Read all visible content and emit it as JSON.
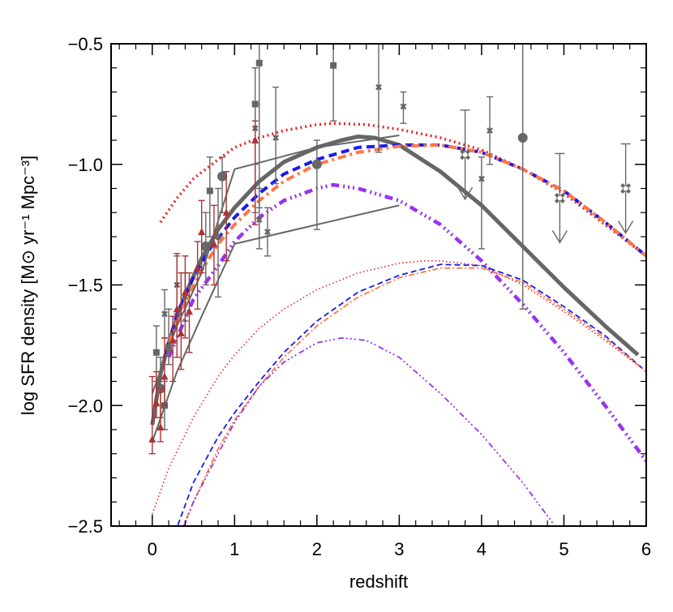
{
  "chart_data": {
    "type": "line",
    "title": "",
    "xlabel": "redshift",
    "ylabel": "log SFR density [M⊙ yr⁻¹ Mpc⁻³]",
    "xlim": [
      -0.5,
      6.0
    ],
    "ylim": [
      -2.5,
      -0.5
    ],
    "xticks": [
      0,
      1,
      2,
      3,
      4,
      5,
      6
    ],
    "yticks": [
      -2.5,
      -2.0,
      -1.5,
      -1.0,
      -0.5
    ],
    "ytick_labels": [
      "−2.5",
      "−2.0",
      "−1.5",
      "−1.0",
      "−0.5"
    ],
    "grid": false,
    "series": [
      {
        "style": "thick-solid",
        "color": "#666666",
        "width": 5,
        "dash": "",
        "x": [
          0.0,
          0.1,
          0.2,
          0.4,
          0.6,
          0.8,
          1.0,
          1.3,
          1.6,
          2.0,
          2.3,
          2.5,
          2.7,
          3.0,
          3.5,
          4.0,
          4.5,
          5.0,
          5.5,
          5.9
        ],
        "y": [
          -2.08,
          -1.87,
          -1.74,
          -1.54,
          -1.39,
          -1.27,
          -1.18,
          -1.07,
          -0.99,
          -0.93,
          -0.9,
          -0.885,
          -0.89,
          -0.92,
          -1.03,
          -1.17,
          -1.34,
          -1.51,
          -1.67,
          -1.79
        ]
      },
      {
        "style": "thick-dotted",
        "color": "#ee2222",
        "width": 3.5,
        "dash": "2 4",
        "x": [
          0.1,
          0.3,
          0.5,
          0.8,
          1.0,
          1.3,
          1.6,
          2.0,
          2.2,
          2.6,
          3.0,
          3.5,
          4.0,
          4.5,
          5.0,
          5.5,
          6.0
        ],
        "y": [
          -1.24,
          -1.14,
          -1.06,
          -0.98,
          -0.93,
          -0.89,
          -0.86,
          -0.835,
          -0.83,
          -0.835,
          -0.855,
          -0.89,
          -0.94,
          -1.02,
          -1.12,
          -1.25,
          -1.38
        ]
      },
      {
        "style": "thick-dashed",
        "color": "#1a1aee",
        "width": 4,
        "dash": "10 6",
        "x": [
          0.15,
          0.3,
          0.5,
          0.7,
          1.0,
          1.3,
          1.6,
          2.0,
          2.5,
          3.0,
          3.5,
          4.0,
          4.5,
          5.0,
          5.5,
          6.0
        ],
        "y": [
          -1.8,
          -1.62,
          -1.47,
          -1.35,
          -1.22,
          -1.12,
          -1.04,
          -0.98,
          -0.93,
          -0.92,
          -0.92,
          -0.95,
          -1.02,
          -1.11,
          -1.24,
          -1.38
        ]
      },
      {
        "style": "thick-dashdot",
        "color": "#ff7744",
        "width": 4,
        "dash": "10 5 3 5",
        "x": [
          0.2,
          0.4,
          0.6,
          0.8,
          1.0,
          1.3,
          1.6,
          2.0,
          2.5,
          3.0,
          3.5,
          4.0,
          4.5,
          5.0,
          5.5,
          6.0
        ],
        "y": [
          -1.74,
          -1.57,
          -1.44,
          -1.33,
          -1.25,
          -1.15,
          -1.07,
          -1.0,
          -0.95,
          -0.925,
          -0.92,
          -0.95,
          -1.02,
          -1.11,
          -1.24,
          -1.38
        ]
      },
      {
        "style": "thick-dashdotdot",
        "color": "#9933ee",
        "width": 4.5,
        "dash": "10 5 2 4 2 4 2 5",
        "x": [
          0.2,
          0.5,
          0.8,
          1.0,
          1.3,
          1.6,
          2.0,
          2.2,
          2.5,
          3.0,
          3.5,
          4.0,
          4.5,
          5.0,
          5.5,
          6.0
        ],
        "y": [
          -1.8,
          -1.56,
          -1.42,
          -1.32,
          -1.22,
          -1.15,
          -1.1,
          -1.085,
          -1.1,
          -1.15,
          -1.25,
          -1.4,
          -1.58,
          -1.78,
          -2.0,
          -2.23
        ]
      },
      {
        "style": "thin-dotted",
        "color": "#ee2222",
        "width": 1.6,
        "dash": "1.5 3",
        "x": [
          0.0,
          0.2,
          0.5,
          0.8,
          1.0,
          1.3,
          1.6,
          2.0,
          2.5,
          3.0,
          3.3,
          3.5,
          4.0,
          4.5,
          5.0,
          5.5,
          6.0
        ],
        "y": [
          -2.45,
          -2.26,
          -2.05,
          -1.88,
          -1.79,
          -1.68,
          -1.6,
          -1.52,
          -1.45,
          -1.41,
          -1.4,
          -1.4,
          -1.42,
          -1.5,
          -1.61,
          -1.73,
          -1.86
        ]
      },
      {
        "style": "thin-dashed",
        "color": "#1a1aee",
        "width": 1.8,
        "dash": "7 4",
        "x": [
          0.2,
          0.5,
          0.8,
          1.0,
          1.3,
          1.6,
          2.0,
          2.5,
          3.0,
          3.5,
          4.0,
          4.5,
          5.0,
          5.5,
          6.0
        ],
        "y": [
          -2.6,
          -2.32,
          -2.13,
          -2.03,
          -1.9,
          -1.78,
          -1.65,
          -1.53,
          -1.46,
          -1.415,
          -1.42,
          -1.48,
          -1.59,
          -1.71,
          -1.86
        ]
      },
      {
        "style": "thin-dashdot",
        "color": "#ff7744",
        "width": 1.8,
        "dash": "7 3 2 3",
        "x": [
          0.3,
          0.5,
          0.8,
          1.0,
          1.3,
          1.6,
          2.0,
          2.5,
          3.0,
          3.5,
          4.0,
          4.5,
          5.0,
          5.5,
          6.0
        ],
        "y": [
          -2.56,
          -2.4,
          -2.18,
          -2.06,
          -1.92,
          -1.8,
          -1.67,
          -1.55,
          -1.47,
          -1.43,
          -1.43,
          -1.49,
          -1.6,
          -1.72,
          -1.86
        ]
      },
      {
        "style": "thin-dashdotdot",
        "color": "#9933ee",
        "width": 1.8,
        "dash": "7 3 2 3 2 3 2 4",
        "x": [
          0.3,
          0.5,
          0.8,
          1.0,
          1.3,
          1.6,
          2.0,
          2.3,
          2.6,
          3.0,
          3.5,
          4.0,
          4.5,
          5.0
        ],
        "y": [
          -2.58,
          -2.4,
          -2.2,
          -2.07,
          -1.92,
          -1.82,
          -1.74,
          -1.72,
          -1.73,
          -1.8,
          -1.95,
          -2.12,
          -2.32,
          -2.55
        ]
      },
      {
        "style": "envelope",
        "color": "#666666",
        "width": 2,
        "dash": "",
        "x": [
          0.0,
          0.3,
          0.6,
          1.0,
          2.0,
          3.0
        ],
        "y": [
          -1.95,
          -1.67,
          -1.45,
          -1.02,
          -0.93,
          -0.88
        ]
      },
      {
        "style": "envelope",
        "color": "#666666",
        "width": 2,
        "dash": "",
        "x": [
          0.0,
          0.3,
          0.6,
          1.0,
          3.0
        ],
        "y": [
          -2.15,
          -1.86,
          -1.63,
          -1.33,
          -1.17
        ]
      }
    ],
    "points": [
      {
        "marker": "square",
        "x": 0.05,
        "y": -1.78,
        "ylo": -1.9,
        "yhi": -1.67,
        "color": "#666666"
      },
      {
        "marker": "square",
        "x": 0.15,
        "y": -2.0,
        "ylo": -2.1,
        "yhi": -1.9,
        "color": "#666666"
      },
      {
        "marker": "square",
        "x": 0.2,
        "y": -1.76,
        "ylo": -1.83,
        "yhi": -1.6,
        "color": "#666666"
      },
      {
        "marker": "square",
        "x": 0.7,
        "y": -1.11,
        "ylo": -1.3,
        "yhi": -0.97,
        "color": "#666666"
      },
      {
        "marker": "square",
        "x": 1.25,
        "y": -0.75,
        "ylo": -1.2,
        "yhi": -0.6,
        "color": "#666666"
      },
      {
        "marker": "square",
        "x": 1.3,
        "y": -0.58,
        "ylo": -1.18,
        "yhi": -0.5,
        "color": "#666666"
      },
      {
        "marker": "square",
        "x": 2.2,
        "y": -0.59,
        "ylo": -0.82,
        "yhi": -0.5,
        "color": "#666666"
      },
      {
        "marker": "circle",
        "x": 0.1,
        "y": -1.93,
        "ylo": -2.05,
        "yhi": -1.8,
        "color": "#666666"
      },
      {
        "marker": "circle",
        "x": 0.65,
        "y": -1.34,
        "ylo": -1.5,
        "yhi": -1.2,
        "color": "#666666"
      },
      {
        "marker": "circle",
        "x": 0.85,
        "y": -1.05,
        "ylo": -1.2,
        "yhi": -0.97,
        "color": "#666666"
      },
      {
        "marker": "circle",
        "x": 2.0,
        "y": -1.0,
        "ylo": -1.27,
        "yhi": -0.9,
        "color": "#666666"
      },
      {
        "marker": "circle",
        "x": 4.5,
        "y": -0.89,
        "ylo": -1.6,
        "yhi": -0.5,
        "color": "#666666"
      },
      {
        "marker": "xsmall",
        "x": 0.15,
        "y": -1.62,
        "ylo": -1.72,
        "yhi": -1.52,
        "color": "#666666"
      },
      {
        "marker": "xsmall",
        "x": 0.3,
        "y": -1.5,
        "ylo": -1.62,
        "yhi": -1.38,
        "color": "#666666"
      },
      {
        "marker": "xsmall",
        "x": 0.4,
        "y": -1.55,
        "ylo": -1.65,
        "yhi": -1.45,
        "color": "#666666"
      },
      {
        "marker": "xsmall",
        "x": 0.8,
        "y": -1.3,
        "ylo": -1.55,
        "yhi": -1.1,
        "color": "#666666"
      },
      {
        "marker": "xsmall",
        "x": 1.25,
        "y": -0.85,
        "ylo": -1.0,
        "yhi": -0.75,
        "color": "#666666"
      },
      {
        "marker": "xsmall",
        "x": 1.3,
        "y": -1.23,
        "ylo": -1.35,
        "yhi": -1.1,
        "color": "#666666"
      },
      {
        "marker": "xsmall",
        "x": 1.4,
        "y": -1.28,
        "ylo": -1.38,
        "yhi": -1.18,
        "color": "#666666"
      },
      {
        "marker": "xsmall",
        "x": 1.5,
        "y": -0.89,
        "ylo": -1.08,
        "yhi": -0.68,
        "color": "#666666"
      },
      {
        "marker": "xsmall",
        "x": 2.75,
        "y": -0.68,
        "ylo": -0.95,
        "yhi": -0.5,
        "color": "#666666"
      },
      {
        "marker": "xsmall",
        "x": 3.05,
        "y": -0.76,
        "ylo": -0.83,
        "yhi": -0.7,
        "color": "#666666"
      },
      {
        "marker": "xsmall",
        "x": 4.0,
        "y": -1.06,
        "ylo": -1.35,
        "yhi": -0.97,
        "color": "#666666"
      },
      {
        "marker": "xsmall",
        "x": 4.1,
        "y": -0.86,
        "ylo": -1.0,
        "yhi": -0.72,
        "color": "#666666"
      },
      {
        "marker": "triangle",
        "x": 0.0,
        "y": -2.14,
        "ylo": -2.2,
        "yhi": -1.88,
        "color": "#aa3333"
      },
      {
        "marker": "triangle",
        "x": 0.05,
        "y": -1.99,
        "ylo": -2.05,
        "yhi": -1.86,
        "color": "#aa3333"
      },
      {
        "marker": "triangle",
        "x": 0.1,
        "y": -2.09,
        "ylo": -2.15,
        "yhi": -1.93,
        "color": "#aa3333"
      },
      {
        "marker": "triangle",
        "x": 0.15,
        "y": -1.88,
        "ylo": -2.0,
        "yhi": -1.72,
        "color": "#aa3333"
      },
      {
        "marker": "triangle",
        "x": 0.25,
        "y": -1.73,
        "ylo": -1.9,
        "yhi": -1.63,
        "color": "#aa3333"
      },
      {
        "marker": "triangle",
        "x": 0.3,
        "y": -1.6,
        "ylo": -1.8,
        "yhi": -1.37,
        "color": "#aa3333"
      },
      {
        "marker": "triangle",
        "x": 0.35,
        "y": -1.7,
        "ylo": -1.85,
        "yhi": -1.45,
        "color": "#aa3333"
      },
      {
        "marker": "triangle",
        "x": 0.4,
        "y": -1.53,
        "ylo": -1.72,
        "yhi": -1.38,
        "color": "#aa3333"
      },
      {
        "marker": "triangle",
        "x": 0.45,
        "y": -1.61,
        "ylo": -1.78,
        "yhi": -1.45,
        "color": "#aa3333"
      },
      {
        "marker": "triangle",
        "x": 0.55,
        "y": -1.43,
        "ylo": -1.6,
        "yhi": -1.32,
        "color": "#aa3333"
      },
      {
        "marker": "triangle",
        "x": 0.6,
        "y": -1.28,
        "ylo": -1.45,
        "yhi": -1.15,
        "color": "#aa3333"
      },
      {
        "marker": "triangle",
        "x": 0.75,
        "y": -1.33,
        "ylo": -1.5,
        "yhi": -1.17,
        "color": "#aa3333"
      },
      {
        "marker": "triangle",
        "x": 0.9,
        "y": -1.2,
        "ylo": -1.4,
        "yhi": -1.03,
        "color": "#aa3333"
      },
      {
        "marker": "triangle",
        "x": 1.25,
        "y": -0.9,
        "ylo": -1.25,
        "yhi": -0.82,
        "color": "#aa3333"
      },
      {
        "marker": "xcircle",
        "x": 3.8,
        "y": -0.96,
        "upper": true,
        "color": "#666666"
      },
      {
        "marker": "xcircle",
        "x": 4.95,
        "y": -1.14,
        "upper": true,
        "color": "#666666"
      },
      {
        "marker": "xcircle",
        "x": 5.75,
        "y": -1.1,
        "upper": true,
        "color": "#666666"
      }
    ]
  }
}
